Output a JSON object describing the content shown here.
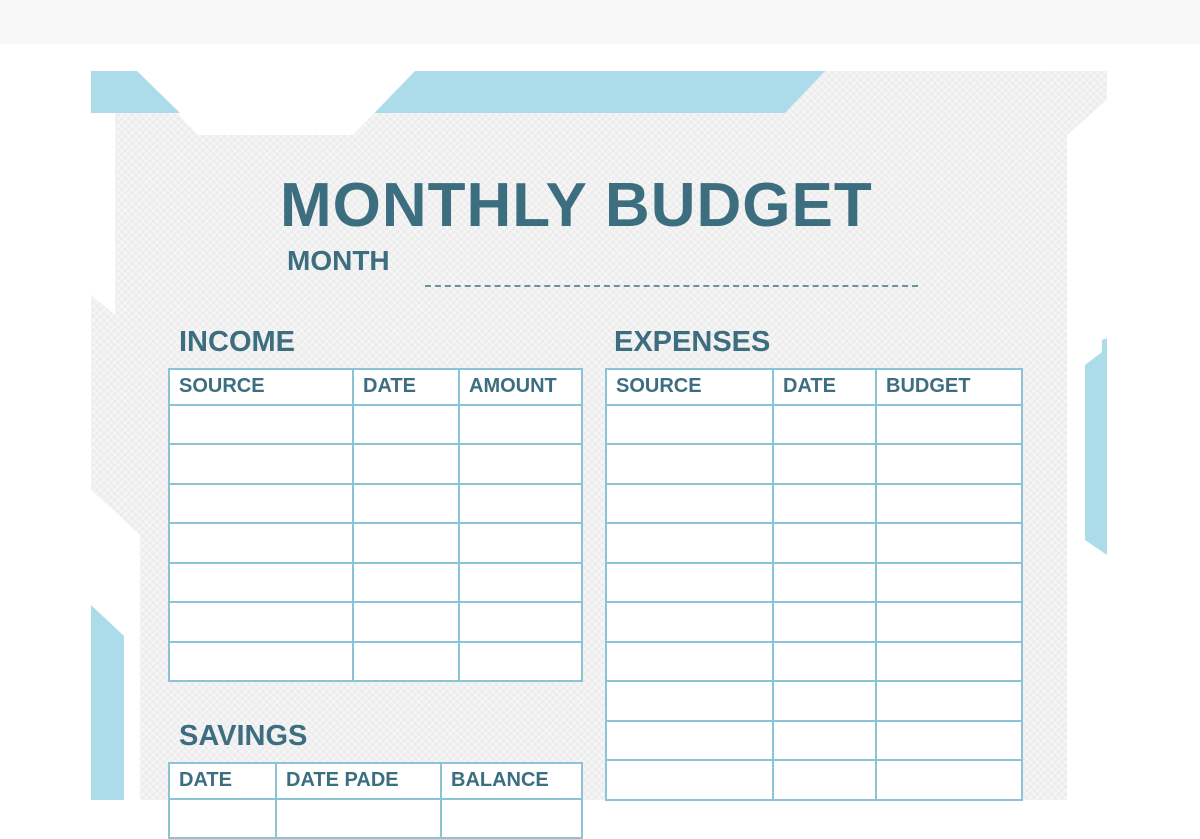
{
  "title": "MONTHLY BUDGET",
  "month_label": "MONTH",
  "colors": {
    "accent": "#3d6e80",
    "band": "#acdcea",
    "grid": "#8cc3d5"
  },
  "income": {
    "heading": "INCOME",
    "columns": [
      "SOURCE",
      "DATE",
      "AMOUNT"
    ],
    "row_count": 7
  },
  "expenses": {
    "heading": "EXPENSES",
    "columns": [
      "SOURCE",
      "DATE",
      "BUDGET"
    ],
    "row_count": 10
  },
  "savings": {
    "heading": "SAVINGS",
    "columns": [
      "DATE",
      "DATE PADE",
      "BALANCE"
    ]
  }
}
